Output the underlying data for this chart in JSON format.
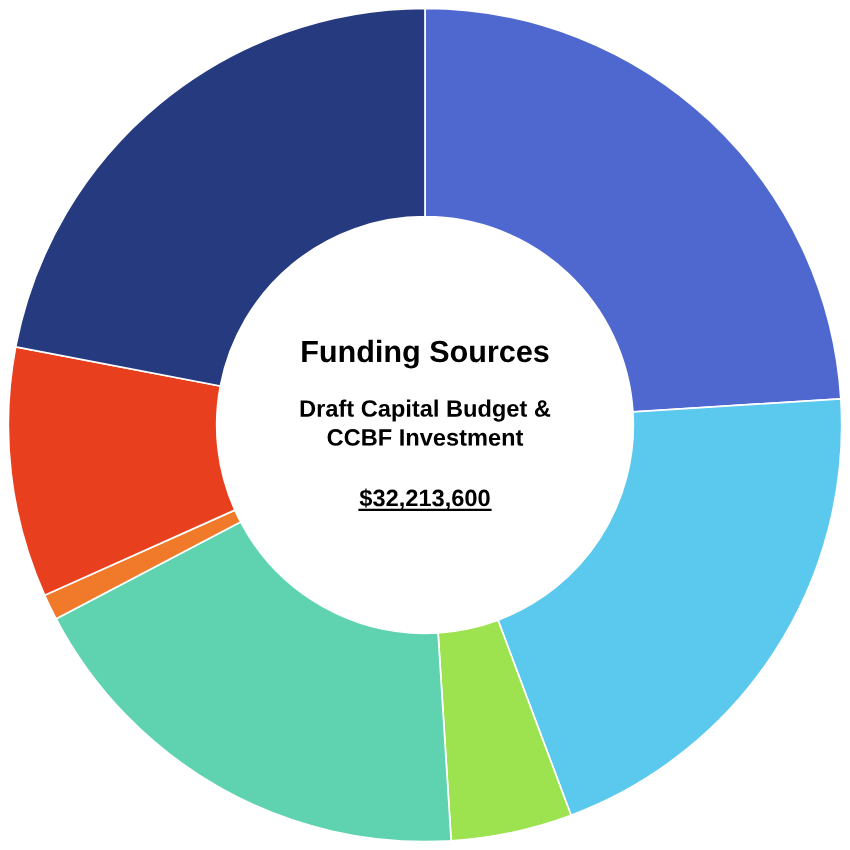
{
  "chart_data": {
    "type": "donut",
    "title": "Funding Sources",
    "subtitle": "Draft Capital Budget &\nCCBF Investment",
    "annotations": [
      "$32,213,600"
    ],
    "categories": [
      null,
      null,
      null,
      null,
      null,
      null,
      null
    ],
    "values": [
      24,
      20.3,
      4.7,
      18.3,
      1,
      9.7,
      22
    ],
    "colors": [
      "#4f68cf",
      "#5bc8ee",
      "#9de34f",
      "#5fd3b0",
      "#f07a2a",
      "#e8401f",
      "#263a7f"
    ],
    "legend": false
  }
}
